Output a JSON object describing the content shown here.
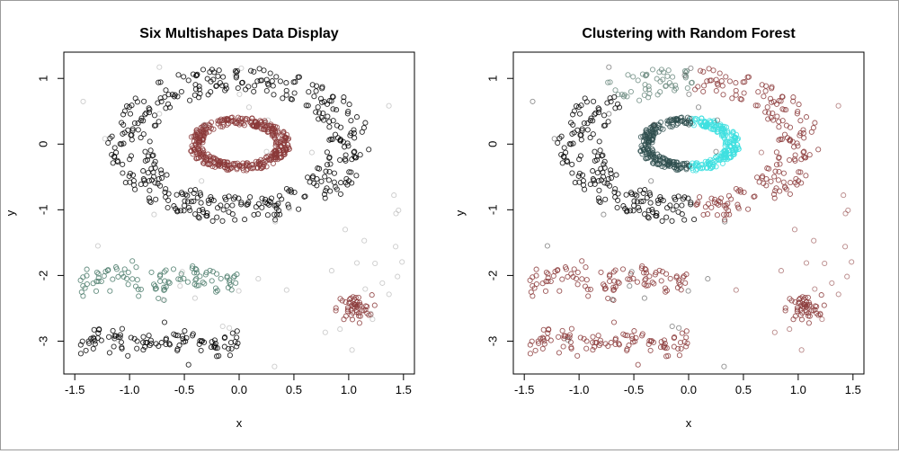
{
  "chart_data": [
    {
      "type": "scatter",
      "title": "Six Multishapes Data Display",
      "xlabel": "x",
      "ylabel": "y",
      "xlim": [
        -1.6,
        1.6
      ],
      "ylim": [
        -3.5,
        1.4
      ],
      "xticks": [
        "-1.5",
        "-1.0",
        "-0.5",
        "0.0",
        "0.5",
        "1.0",
        "1.5"
      ],
      "yticks": [
        "1",
        "0",
        "-1",
        "-2",
        "-3"
      ],
      "grid": false,
      "marker": "open-circle",
      "series": [
        {
          "shape": "outer ring",
          "center": [
            0,
            0
          ],
          "radius": 1.0,
          "color": "#000000",
          "points": 400
        },
        {
          "shape": "inner ring",
          "center": [
            0,
            0
          ],
          "radius": 0.35,
          "color": "#8b3a3a",
          "points": 400
        },
        {
          "shape": "upper band",
          "x_range": [
            -1.5,
            0
          ],
          "y": -2.05,
          "color": "#4a7a6a",
          "points": 100
        },
        {
          "shape": "lower band",
          "x_range": [
            -1.5,
            0
          ],
          "y": -3.0,
          "color": "#000000",
          "points": 100
        },
        {
          "shape": "small cluster",
          "center": [
            1.05,
            -2.5
          ],
          "color": "#8b3a3a",
          "points": 50
        },
        {
          "shape": "noise",
          "x_range": [
            -1.5,
            1.5
          ],
          "y_range": [
            -3.5,
            1.3
          ],
          "color": "#aaaaaa",
          "points": 50
        }
      ]
    },
    {
      "type": "scatter",
      "title": "Clustering with Random Forest",
      "xlabel": "x",
      "ylabel": "y",
      "xlim": [
        -1.6,
        1.6
      ],
      "ylim": [
        -3.5,
        1.4
      ],
      "xticks": [
        "-1.5",
        "-1.0",
        "-0.5",
        "0.0",
        "0.5",
        "1.0",
        "1.5"
      ],
      "yticks": [
        "1",
        "0",
        "-1",
        "-2",
        "-3"
      ],
      "grid": false,
      "marker": "open-circle",
      "clusters": [
        {
          "region": "outer ring left half",
          "color": "#000000"
        },
        {
          "region": "outer ring upper-left arc",
          "color": "#6b8a7f"
        },
        {
          "region": "outer ring right half",
          "color": "#8b3a3a"
        },
        {
          "region": "inner ring left half",
          "color": "#2f4f4f"
        },
        {
          "region": "inner ring right half",
          "color": "#3fe0e0"
        },
        {
          "region": "both bands",
          "color": "#8b3a3a"
        },
        {
          "region": "small cluster",
          "color": "#8b3a3a"
        }
      ]
    }
  ]
}
